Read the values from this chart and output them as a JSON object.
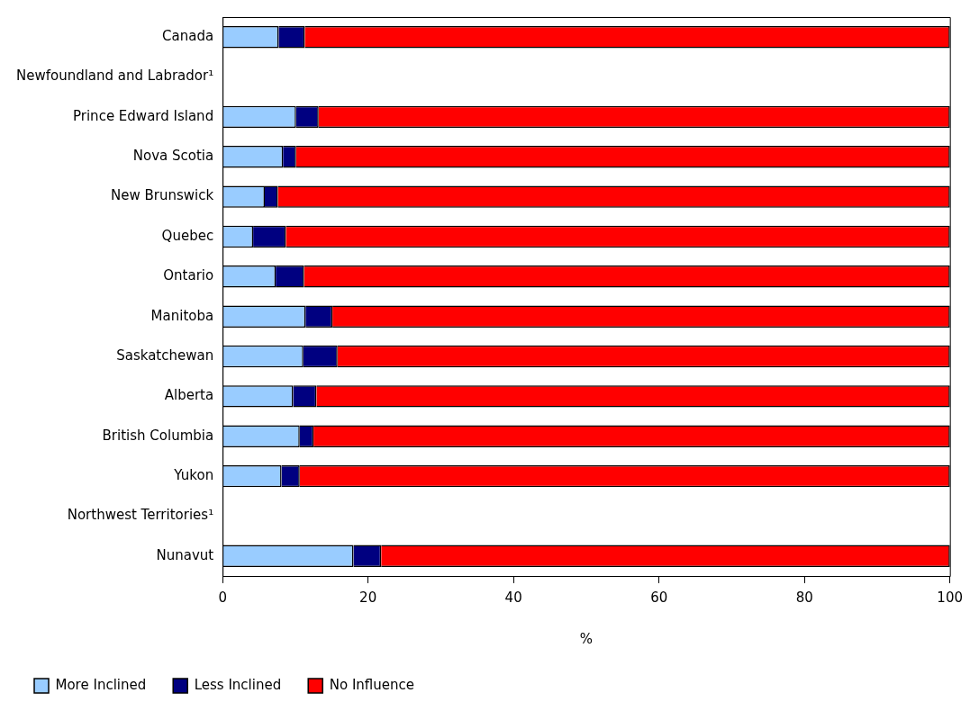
{
  "chart_data": {
    "type": "bar",
    "orientation": "horizontal",
    "stacked": true,
    "xlabel": "%",
    "categories": [
      "Canada",
      "Newfoundland and Labrador¹",
      "Prince Edward Island",
      "Nova Scotia",
      "New Brunswick",
      "Quebec",
      "Ontario",
      "Manitoba",
      "Saskatchewan",
      "Alberta",
      "British Columbia",
      "Yukon",
      "Northwest Territories¹",
      "Nunavut"
    ],
    "series": [
      {
        "name": "More Inclined",
        "color": "#99ccff",
        "values": [
          7.7,
          null,
          10.1,
          8.3,
          5.8,
          4.2,
          7.3,
          11.4,
          11.1,
          9.7,
          10.6,
          8.1,
          null,
          18.0
        ]
      },
      {
        "name": "Less Inclined",
        "color": "#000080",
        "values": [
          3.6,
          null,
          3.1,
          1.8,
          1.8,
          4.5,
          3.9,
          3.7,
          4.7,
          3.2,
          1.9,
          2.5,
          null,
          3.8
        ]
      },
      {
        "name": "No Influence",
        "color": "#ff0000",
        "values": [
          88.7,
          null,
          86.8,
          89.9,
          92.4,
          91.3,
          88.8,
          84.9,
          84.2,
          87.1,
          87.5,
          89.4,
          null,
          78.2
        ]
      }
    ],
    "xlim": [
      0,
      100
    ],
    "xticks": [
      0,
      20,
      40,
      60,
      80,
      100
    ],
    "grid": false,
    "legend": "bottom"
  }
}
